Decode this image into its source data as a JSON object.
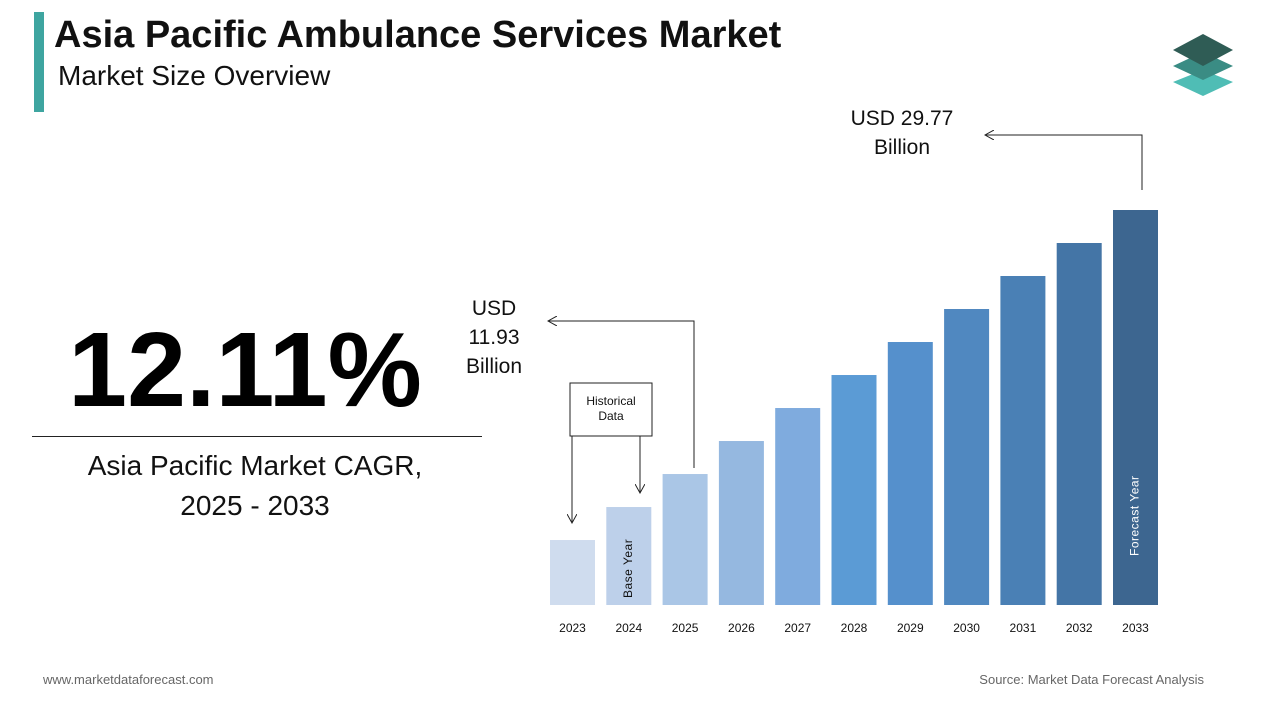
{
  "header": {
    "title": "Asia Pacific Ambulance Services Market",
    "subtitle": "Market Size Overview"
  },
  "kpi": {
    "value": "12.11%",
    "label": "Asia Pacific Market CAGR, 2025 - 2033"
  },
  "chart_data": {
    "type": "bar",
    "categories": [
      "2023",
      "2024",
      "2025",
      "2026",
      "2027",
      "2028",
      "2029",
      "2030",
      "2031",
      "2032",
      "2033"
    ],
    "values": [
      7.47,
      9.7,
      11.93,
      14.16,
      16.39,
      18.62,
      20.85,
      23.08,
      25.31,
      27.54,
      29.77
    ],
    "value_labels": [
      null,
      null,
      "USD 11.93 Billion",
      null,
      null,
      null,
      null,
      null,
      null,
      null,
      "USD 29.77 Billion"
    ],
    "bar_labels": [
      null,
      "Base Year",
      null,
      null,
      null,
      null,
      null,
      null,
      null,
      null,
      "Forecast Year"
    ],
    "colors": [
      "#cfdcee",
      "#bdd0ea",
      "#aac6e6",
      "#95b8e0",
      "#7fabde",
      "#5b9bd5",
      "#5590cc",
      "#5088c0",
      "#4a80b5",
      "#4475a6",
      "#3d6690"
    ],
    "annotation": "Historical Data",
    "ylim": [
      3.08,
      29.77
    ]
  },
  "footer": {
    "website": "www.marketdataforecast.com",
    "source": "Source: Market Data Forecast Analysis"
  }
}
